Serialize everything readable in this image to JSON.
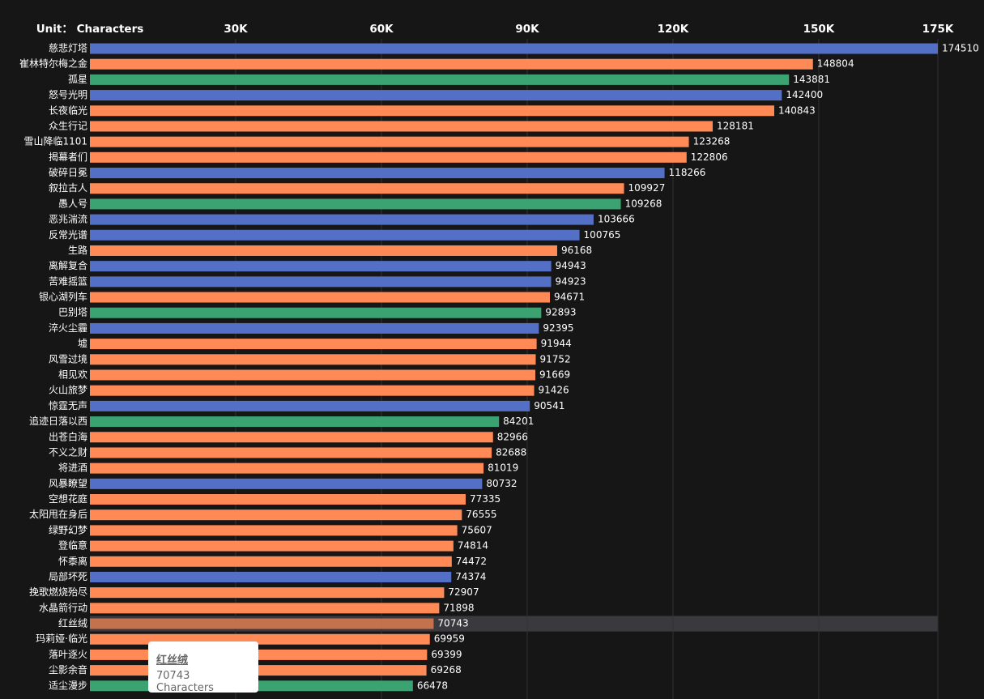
{
  "chart_data": {
    "type": "hbar",
    "axis_label": "Unit： Characters",
    "xlim": [
      0,
      174510
    ],
    "xticks": [
      {
        "value": 30000,
        "label": "30K"
      },
      {
        "value": 60000,
        "label": "60K"
      },
      {
        "value": 90000,
        "label": "90K"
      },
      {
        "value": 120000,
        "label": "120K"
      },
      {
        "value": 150000,
        "label": "150K"
      },
      {
        "value": 174510,
        "label": "175K"
      }
    ],
    "grid": true,
    "categories": [
      "慈悲灯塔",
      "崔林特尔梅之金",
      "孤星",
      "怒号光明",
      "长夜临光",
      "众生行记",
      "雪山降临1101",
      "揭幕者们",
      "破碎日冕",
      "叙拉古人",
      "愚人号",
      "恶兆湍流",
      "反常光谱",
      "生路",
      "离解复合",
      "苦难摇篮",
      "银心湖列车",
      "巴别塔",
      "淬火尘霾",
      "墟",
      "风雪过境",
      "相见欢",
      "火山旅梦",
      "惊霆无声",
      "追迹日落以西",
      "出苍白海",
      "不义之财",
      "将进酒",
      "风暴瞭望",
      "空想花庭",
      "太阳甩在身后",
      "绿野幻梦",
      "登临意",
      "怀黍离",
      "局部坏死",
      "挽歌燃烧殆尽",
      "水晶箭行动",
      "红丝绒",
      "玛莉娅·临光",
      "落叶逐火",
      "尘影余音",
      "适尘漫步"
    ],
    "values": [
      174510,
      148804,
      143881,
      142400,
      140843,
      128181,
      123268,
      122806,
      118266,
      109927,
      109268,
      103666,
      100765,
      96168,
      94943,
      94923,
      94671,
      92893,
      92395,
      91944,
      91752,
      91669,
      91426,
      90541,
      84201,
      82966,
      82688,
      81019,
      80732,
      77335,
      76555,
      75607,
      74814,
      74472,
      74374,
      72907,
      71898,
      70743,
      69959,
      69399,
      69268,
      66478
    ],
    "colors": [
      "#5470c6",
      "#ff8a55",
      "#3ba272",
      "#5470c6",
      "#ff8a55",
      "#ff8a55",
      "#ff8a55",
      "#ff8a55",
      "#5470c6",
      "#ff8a55",
      "#3ba272",
      "#5470c6",
      "#5470c6",
      "#ff8a55",
      "#5470c6",
      "#5470c6",
      "#ff8a55",
      "#3ba272",
      "#5470c6",
      "#ff8a55",
      "#ff8a55",
      "#ff8a55",
      "#ff8a55",
      "#5470c6",
      "#3ba272",
      "#ff8a55",
      "#ff8a55",
      "#ff8a55",
      "#5470c6",
      "#ff8a55",
      "#ff8a55",
      "#ff8a55",
      "#ff8a55",
      "#ff8a55",
      "#5470c6",
      "#ff8a55",
      "#ff8a55",
      "#ff8a55",
      "#ff8a55",
      "#ff8a55",
      "#ff8a55",
      "#3ba272"
    ],
    "emphasis_index": 37,
    "tooltip": {
      "title": "红丝绒",
      "text": "70743 Characters"
    }
  }
}
